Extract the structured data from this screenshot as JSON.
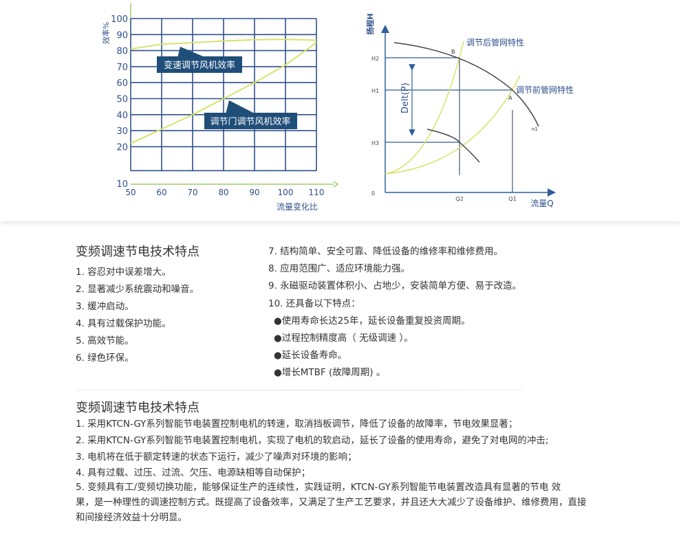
{
  "figure_left": {
    "y_axis_label": "效率%",
    "x_axis_label": "流量变化比",
    "y_ticks": [
      "100",
      "90",
      "80",
      "70",
      "60",
      "50",
      "40",
      "30",
      "20",
      "10"
    ],
    "x_ticks": [
      "50",
      "60",
      "70",
      "80",
      "90",
      "100",
      "110"
    ],
    "callout_speed": "变速调节风机效率",
    "callout_damper": "调节门调节风机效率",
    "series_speed": [
      [
        50,
        81
      ],
      [
        60,
        84
      ],
      [
        70,
        85
      ],
      [
        80,
        86
      ],
      [
        90,
        86.8
      ],
      [
        100,
        87
      ],
      [
        110,
        86.5
      ]
    ],
    "series_damper": [
      [
        50,
        22
      ],
      [
        60,
        31
      ],
      [
        70,
        40
      ],
      [
        80,
        50
      ],
      [
        90,
        60
      ],
      [
        100,
        71
      ],
      [
        110,
        85
      ]
    ],
    "grid_color": "#2e4f8c",
    "curve_color": "#d6e36a",
    "callout_color": "#1f4e79"
  },
  "figure_right": {
    "y_axis_label": "扬程H",
    "x_axis_label": "流量Q",
    "y_ticks": [
      "H2",
      "H1",
      "H3",
      "0"
    ],
    "x_ticks": [
      "Q2",
      "Q1"
    ],
    "point_a": "A",
    "point_b": "B",
    "curve_n1": "n1",
    "delta_label": "Delt(P)",
    "label_after": "调节后管网特性",
    "label_before": "调节前管网特性"
  },
  "section1": {
    "title": "变频调速节电技术特点",
    "left_items": [
      "1. 容忍对中误差增大。",
      "2. 显著减少系统震动和噪音。",
      "3. 缓冲启动。",
      "4. 具有过载保护功能。",
      "5. 高效节能。",
      "6. 绿色环保。"
    ],
    "right_items": [
      "7. 结构简单、安全可靠、降低设备的维修率和维修费用。",
      "8. 应用范围广、适应环境能力强。",
      "9. 永磁驱动装置体积小、占地少，安装简单方便、易于改造。",
      "10. 还具备以下特点："
    ],
    "bullets": [
      "●使用寿命长达25年，延长设备重复投资周期。",
      "●过程控制精度高（ 无级调速 ）。",
      "●延长设备寿命。",
      "●增长MTBF (故障周期) 。"
    ]
  },
  "section2": {
    "title": "变频调速节电技术特点",
    "lines": [
      "1. 采用KTCN-GY系列智能节电装置控制电机的转速，取消挡板调节，降低了设备的故障率，节电效果显著；",
      "2. 采用KTCN-GY系列智能节电装置控制电机，实现了电机的软启动，延长了设备的使用寿命，避免了对电网的冲击;",
      "3. 电机将在低于额定转速的状态下运行，减少了噪声对环境的影响；",
      "4. 具有过载、过压、过流、欠压、电源缺相等自动保护；",
      "5. 变频具有工/变频切换功能，能够保证生产的连续性，实践证明，KTCN-GY系列智能节电装置改造具有显著的节电  效",
      "果，是一种理性的调速控制方式。既提高了设备效率，又满足了生产工艺要求，并且还大大减少了设备维护、维修费用，直接",
      "和间接经济效益十分明显。"
    ]
  }
}
